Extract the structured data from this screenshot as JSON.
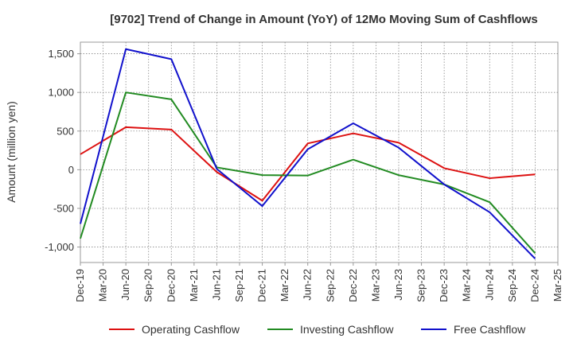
{
  "chart_data": {
    "type": "line",
    "title": "[9702]  Trend of Change in Amount (YoY) of 12Mo Moving Sum of Cashflows",
    "xlabel": "",
    "ylabel": "Amount (million yen)",
    "ylim": [
      -1200,
      1650
    ],
    "yticks": [
      -1000,
      -500,
      0,
      500,
      1000,
      1500
    ],
    "ytick_labels": [
      "-1,000",
      "-500",
      "0",
      "500",
      "1,000",
      "1,500"
    ],
    "categories": [
      "Dec-19",
      "Mar-20",
      "Jun-20",
      "Sep-20",
      "Dec-20",
      "Mar-21",
      "Jun-21",
      "Sep-21",
      "Dec-21",
      "Mar-22",
      "Jun-22",
      "Sep-22",
      "Dec-22",
      "Mar-23",
      "Jun-23",
      "Sep-23",
      "Dec-23",
      "Mar-24",
      "Jun-24",
      "Sep-24",
      "Dec-24",
      "Mar-25"
    ],
    "grid": true,
    "legend_position": "bottom",
    "series": [
      {
        "name": "Operating Cashflow",
        "color": "#dd1111",
        "values": [
          200,
          null,
          550,
          null,
          520,
          null,
          -30,
          null,
          -400,
          null,
          340,
          null,
          470,
          null,
          350,
          null,
          20,
          null,
          -110,
          null,
          -60,
          null
        ]
      },
      {
        "name": "Investing Cashflow",
        "color": "#228b22",
        "values": [
          -890,
          null,
          1000,
          null,
          910,
          null,
          30,
          null,
          -70,
          null,
          -75,
          null,
          130,
          null,
          -70,
          null,
          -190,
          null,
          -420,
          null,
          -1080,
          null
        ]
      },
      {
        "name": "Free Cashflow",
        "color": "#1111cc",
        "values": [
          -700,
          null,
          1560,
          null,
          1430,
          null,
          10,
          null,
          -470,
          null,
          265,
          null,
          600,
          null,
          285,
          null,
          -190,
          null,
          -550,
          null,
          -1150,
          null
        ]
      }
    ]
  }
}
